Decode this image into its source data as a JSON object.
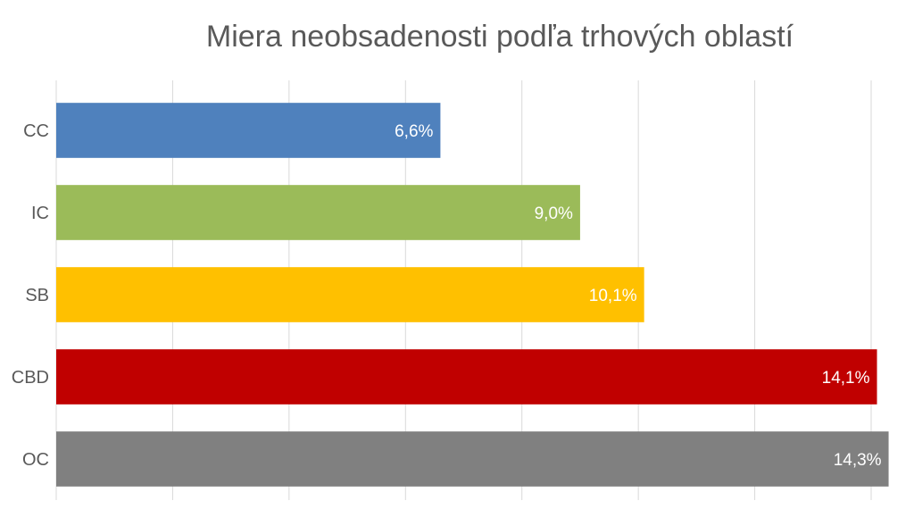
{
  "chart_data": {
    "type": "bar",
    "orientation": "horizontal",
    "title": "Miera neobsadenosti podľa trhových oblastí",
    "categories": [
      "CC",
      "IC",
      "SB",
      "CBD",
      "OC"
    ],
    "values": [
      6.6,
      9.0,
      10.1,
      14.1,
      14.3
    ],
    "data_labels": [
      "6,6%",
      "9,0%",
      "10,1%",
      "14,1%",
      "14,3%"
    ],
    "colors": [
      "#4f81bd",
      "#9bbb59",
      "#ffc000",
      "#c00000",
      "#808080"
    ],
    "xlim": [
      0,
      14
    ],
    "grid": true,
    "legend": "none"
  }
}
